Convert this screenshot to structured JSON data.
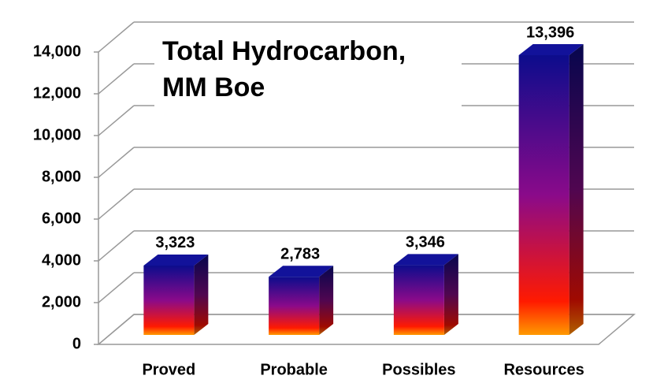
{
  "chart_data": {
    "type": "bar3d",
    "title": "Total Hydrocarbon, MM Boe",
    "categories": [
      "Proved",
      "Probable",
      "Possibles",
      "Resources"
    ],
    "values": [
      3323,
      2783,
      3346,
      13396
    ],
    "value_labels": [
      "3,323",
      "2,783",
      "3,346",
      "13,396"
    ],
    "ylim": [
      0,
      14000
    ],
    "yticks": [
      0,
      {
        "value": 2000,
        "label": "2,000"
      },
      {
        "value": 4000,
        "label": "4,000"
      },
      {
        "value": 6000,
        "label": "6,000"
      },
      {
        "value": 8000,
        "label": "8,000"
      },
      {
        "value": 10000,
        "label": "10,000"
      },
      {
        "value": 12000,
        "label": "12,000"
      },
      {
        "value": 14000,
        "label": "14,000"
      }
    ],
    "grid": true
  }
}
